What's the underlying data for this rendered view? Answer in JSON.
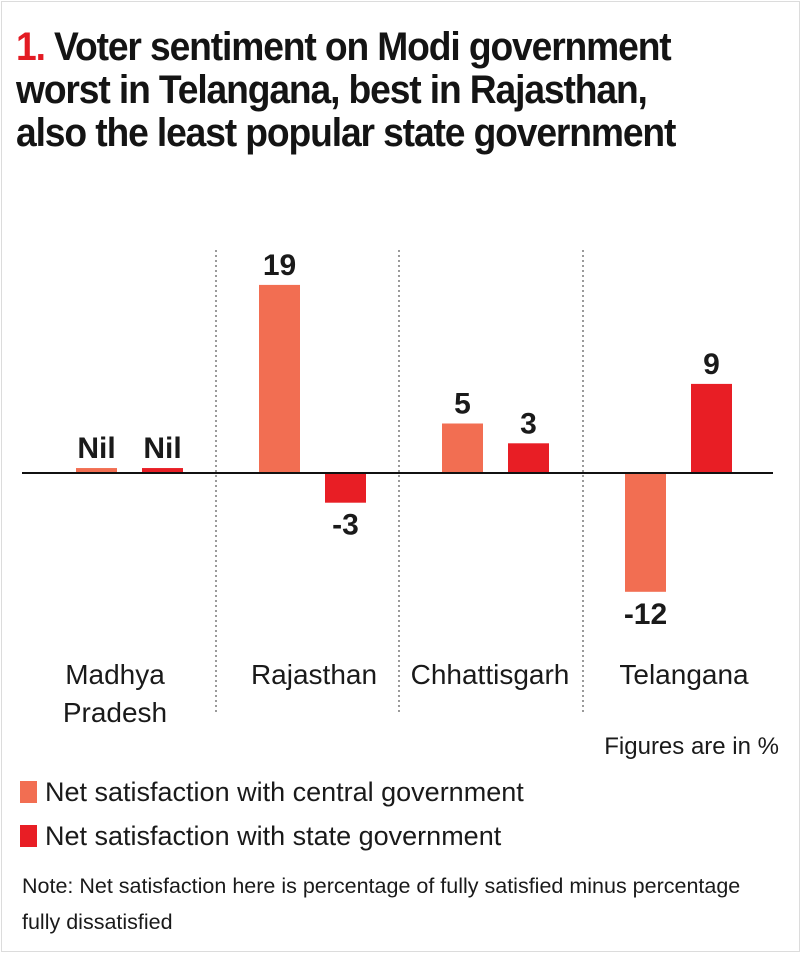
{
  "title": {
    "number": "1.",
    "text": "Voter sentiment on Modi government worst in Telangana, best in Rajasthan, also the least popular state government"
  },
  "colors": {
    "central": "#f26e52",
    "state": "#e81e25",
    "title_number": "#e31b23"
  },
  "chart_data": {
    "type": "bar",
    "title": "Voter sentiment on Modi government worst in Telangana, best in Rajasthan, also the least popular state government",
    "categories": [
      "Madhya Pradesh",
      "Rajasthan",
      "Chhattisgarh",
      "Telangana"
    ],
    "category_lines": [
      [
        "Madhya",
        "Pradesh"
      ],
      [
        "Rajasthan"
      ],
      [
        "Chhattisgarh"
      ],
      [
        "Telangana"
      ]
    ],
    "series": [
      {
        "name": "Net satisfaction with central government",
        "values": [
          0,
          19,
          5,
          -12
        ],
        "labels": [
          "Nil",
          "19",
          "5",
          "-12"
        ]
      },
      {
        "name": "Net satisfaction with state government",
        "values": [
          0,
          -3,
          3,
          9
        ],
        "labels": [
          "Nil",
          "-3",
          "3",
          "9"
        ]
      }
    ],
    "nil_display_value": 0.5,
    "units": "%",
    "xlabel": "",
    "ylabel": "",
    "ylim": [
      -14,
      21
    ],
    "grid": false,
    "legend": "bottom-left"
  },
  "units_note": "Figures are in %",
  "legend": [
    {
      "label": "Net satisfaction with central government",
      "color": "#f26e52"
    },
    {
      "label": "Net satisfaction with state government",
      "color": "#e81e25"
    }
  ],
  "note": "Note: Net satisfaction here is percentage of fully satisfied minus percentage fully dissatisfied"
}
